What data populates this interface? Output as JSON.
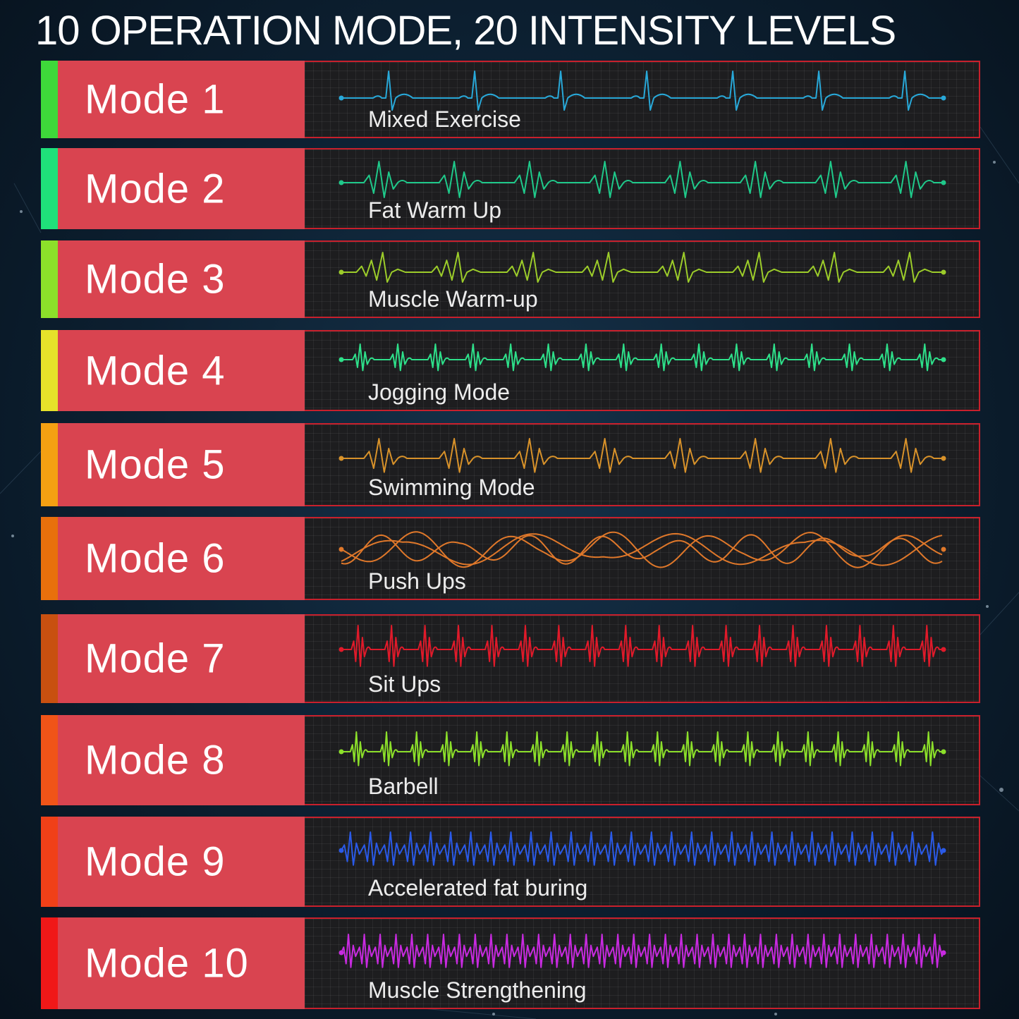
{
  "headline": "10 OPERATION MODE, 20 INTENSITY LEVELS",
  "modes": [
    {
      "label": "Mode 1",
      "name": "Mixed Exercise",
      "wave_color": "#28a8d8",
      "strip_color": "#3ed83a"
    },
    {
      "label": "Mode 2",
      "name": "Fat Warm Up",
      "wave_color": "#1fc98a",
      "strip_color": "#1fe07a"
    },
    {
      "label": "Mode 3",
      "name": "Muscle Warm-up",
      "wave_color": "#9ccc2a",
      "strip_color": "#8ce02a"
    },
    {
      "label": "Mode 4",
      "name": "Jogging Mode",
      "wave_color": "#2ee08a",
      "strip_color": "#e6e22a"
    },
    {
      "label": "Mode 5",
      "name": "Swimming Mode",
      "wave_color": "#d8922a",
      "strip_color": "#f4a012"
    },
    {
      "label": "Mode 6",
      "name": "Push Ups",
      "wave_color": "#e0782a",
      "strip_color": "#e8700c"
    },
    {
      "label": "Mode 7",
      "name": "Sit Ups",
      "wave_color": "#e01a2a",
      "strip_color": "#c85010"
    },
    {
      "label": "Mode 8",
      "name": "Barbell",
      "wave_color": "#8ce02a",
      "strip_color": "#f05418"
    },
    {
      "label": "Mode 9",
      "name": "Accelerated fat buring",
      "wave_color": "#2a5ae8",
      "strip_color": "#f04018"
    },
    {
      "label": "Mode 10",
      "name": "Muscle Strengthening",
      "wave_color": "#c82ae0",
      "strip_color": "#f01818"
    }
  ]
}
